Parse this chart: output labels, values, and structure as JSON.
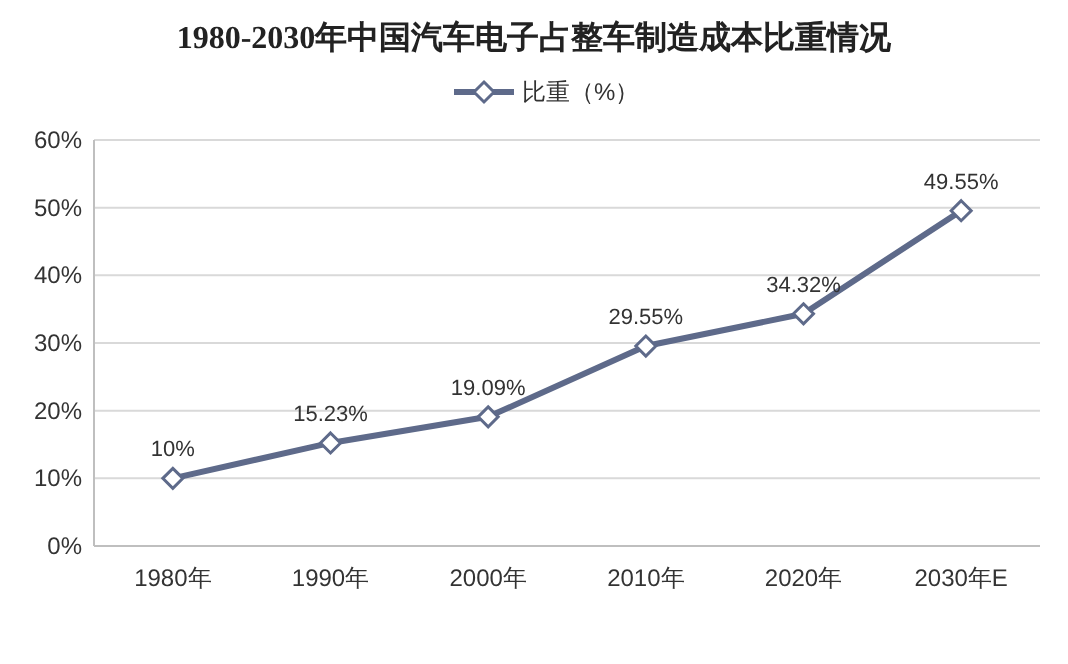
{
  "chart_data": {
    "type": "line",
    "title": "1980-2030年中国汽车电子占整车制造成本比重情况",
    "categories": [
      "1980年",
      "1990年",
      "2000年",
      "2010年",
      "2020年",
      "2030年E"
    ],
    "series": [
      {
        "name": "比重（%）",
        "color": "#5e6a8a",
        "values": [
          10,
          15.23,
          19.09,
          29.55,
          34.32,
          49.55
        ],
        "value_labels": [
          "10%",
          "15.23%",
          "19.09%",
          "29.55%",
          "34.32%",
          "49.55%"
        ]
      }
    ],
    "ylim": [
      0,
      60
    ],
    "yticks": [
      {
        "value": 0,
        "label": "0%"
      },
      {
        "value": 10,
        "label": "10%"
      },
      {
        "value": 20,
        "label": "20%"
      },
      {
        "value": 30,
        "label": "30%"
      },
      {
        "value": 40,
        "label": "40%"
      },
      {
        "value": 50,
        "label": "50%"
      },
      {
        "value": 60,
        "label": "60%"
      }
    ],
    "grid": "y",
    "legend": "top",
    "marker": "diamond",
    "line_style": "solid"
  }
}
